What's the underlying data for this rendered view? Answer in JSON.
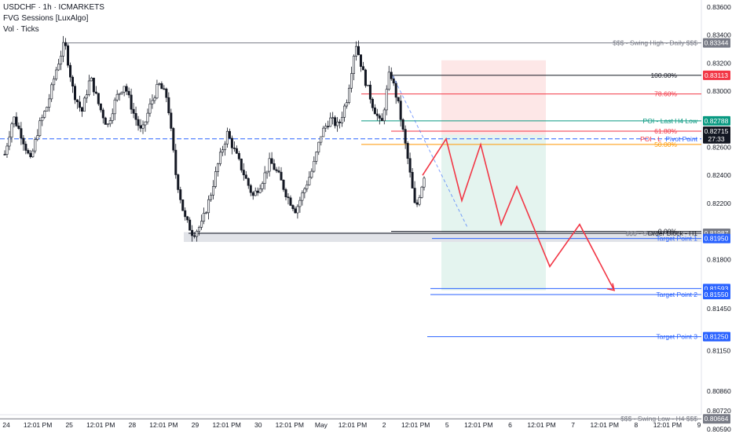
{
  "header": {
    "symbol_line": "USDCHF · 1h · ICMARKETS",
    "indicator_1": "FVG Sessions [LuxAlgo]",
    "indicator_2": "Vol · Ticks"
  },
  "chart_data": {
    "type": "candlestick",
    "ylim": [
      0.8057,
      0.8365
    ],
    "y_ticks": [
      "0.83600",
      "0.83400",
      "0.83200",
      "0.83000",
      "0.82600",
      "0.82400",
      "0.82200",
      "0.81800",
      "0.81450",
      "0.81150",
      "0.80860",
      "0.80720",
      "0.80590"
    ],
    "x_ticks": [
      "24",
      "12:01 PM",
      "25",
      "12:01 PM",
      "28",
      "12:01 PM",
      "29",
      "12:01 PM",
      "30",
      "12:01 PM",
      "May",
      "12:01 PM",
      "2",
      "12:01 PM",
      "5",
      "12:01 PM",
      "6",
      "12:01 PM",
      "7",
      "12:01 PM",
      "8",
      "12:01 PM",
      "9"
    ],
    "price_path": [
      0.8255,
      0.8282,
      0.8268,
      0.825,
      0.8275,
      0.829,
      0.8315,
      0.8335,
      0.83,
      0.8285,
      0.831,
      0.829,
      0.8275,
      0.8295,
      0.8305,
      0.8285,
      0.827,
      0.829,
      0.8305,
      0.8295,
      0.824,
      0.821,
      0.8198,
      0.8205,
      0.8225,
      0.825,
      0.827,
      0.8255,
      0.824,
      0.8225,
      0.8235,
      0.825,
      0.824,
      0.8225,
      0.8215,
      0.823,
      0.8245,
      0.827,
      0.828,
      0.8275,
      0.8295,
      0.8335,
      0.831,
      0.829,
      0.8275,
      0.8315,
      0.829,
      0.8255,
      0.8215,
      0.824
    ],
    "levels": [
      {
        "label": "$$$ - Swing High - Daily $$$",
        "tag": "0.83344",
        "price": 0.83344,
        "color": "#787b86",
        "tag_bg": "#787b86"
      },
      {
        "label": "100.00%",
        "tag": "0.83113",
        "price": 0.83113,
        "color": "#131722",
        "tag_bg": "#f23645"
      },
      {
        "label": "78.60%",
        "tag": "",
        "price": 0.8298,
        "color": "#f23645",
        "tag_bg": ""
      },
      {
        "label": "POI - Last H4 Low",
        "tag": "0.82788",
        "price": 0.82788,
        "color": "#089981",
        "tag_bg": "#089981"
      },
      {
        "label": "61.80%",
        "tag": "0.82715",
        "price": 0.82715,
        "color": "#f23645",
        "tag_bg": "#131722"
      },
      {
        "label": "Pivot Point",
        "tag": "27:33",
        "price": 0.8266,
        "color": "#2962ff",
        "tag_bg": "#131722"
      },
      {
        "label": "50.00%",
        "tag": "",
        "price": 0.8262,
        "color": "#ff9800",
        "tag_bg": ""
      },
      {
        "label": "0.00%",
        "tag": "",
        "price": 0.82,
        "color": "#131722",
        "tag_bg": ""
      },
      {
        "label": "Order Block - H1",
        "tag": "0.81987",
        "price": 0.81987,
        "color": "#131722",
        "tag_bg": "#787b86"
      },
      {
        "label": "Target Point 1",
        "tag": "0.81950",
        "price": 0.8195,
        "color": "#2962ff",
        "tag_bg": "#2962ff"
      },
      {
        "label": "",
        "tag": "0.81593",
        "price": 0.81593,
        "color": "#2962ff",
        "tag_bg": "#2962ff"
      },
      {
        "label": "Target Point 2",
        "tag": "0.81550",
        "price": 0.8155,
        "color": "#2962ff",
        "tag_bg": "#2962ff"
      },
      {
        "label": "Target Point 3",
        "tag": "0.81250",
        "price": 0.8125,
        "color": "#2962ff",
        "tag_bg": "#2962ff"
      },
      {
        "label": "$$$ - Swing Low - H4 $$$",
        "tag": "0.80664",
        "price": 0.80664,
        "color": "#787b86",
        "tag_bg": "#787b86"
      }
    ],
    "extra_labels": {
      "poi_overlap": "POI - L",
      "swing_overlap": "$$$ - Swi"
    },
    "projection": [
      0.824,
      0.8266,
      0.8222,
      0.8262,
      0.8205,
      0.8232,
      0.8175,
      0.8205,
      0.8158
    ],
    "colors": {
      "up": "#131722",
      "down": "#131722",
      "projection": "#f23645",
      "sell_zone": "#fde7e7",
      "target_zone": "#e4f4ef"
    }
  }
}
